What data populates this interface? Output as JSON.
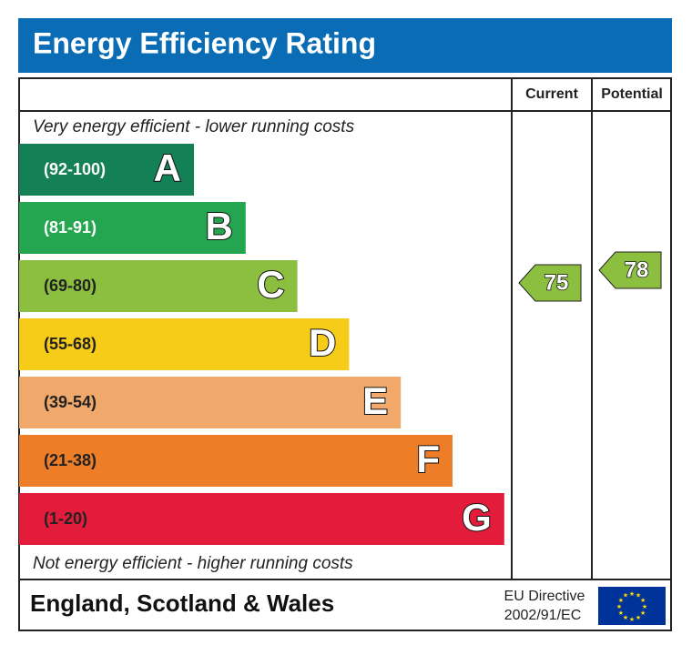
{
  "header": {
    "title": "Energy Efficiency Rating",
    "columns": [
      "Current",
      "Potential"
    ]
  },
  "top_note": "Very energy efficient - lower running costs",
  "bottom_note": "Not energy efficient - higher running costs",
  "bands": [
    {
      "range": "(92-100)",
      "letter": "A",
      "color": "#138056"
    },
    {
      "range": "(81-91)",
      "letter": "B",
      "color": "#24a650"
    },
    {
      "range": "(69-80)",
      "letter": "C",
      "color": "#8cbf3f"
    },
    {
      "range": "(55-68)",
      "letter": "D",
      "color": "#f6cc18"
    },
    {
      "range": "(39-54)",
      "letter": "E",
      "color": "#f1a86b"
    },
    {
      "range": "(21-38)",
      "letter": "F",
      "color": "#ed7d27"
    },
    {
      "range": "(1-20)",
      "letter": "G",
      "color": "#e31c3c"
    }
  ],
  "ratings": {
    "current": 75,
    "potential": 78,
    "color": "#8cbf3f"
  },
  "footer": {
    "region": "England, Scotland & Wales",
    "directive": [
      "EU Directive",
      "2002/91/EC"
    ]
  }
}
